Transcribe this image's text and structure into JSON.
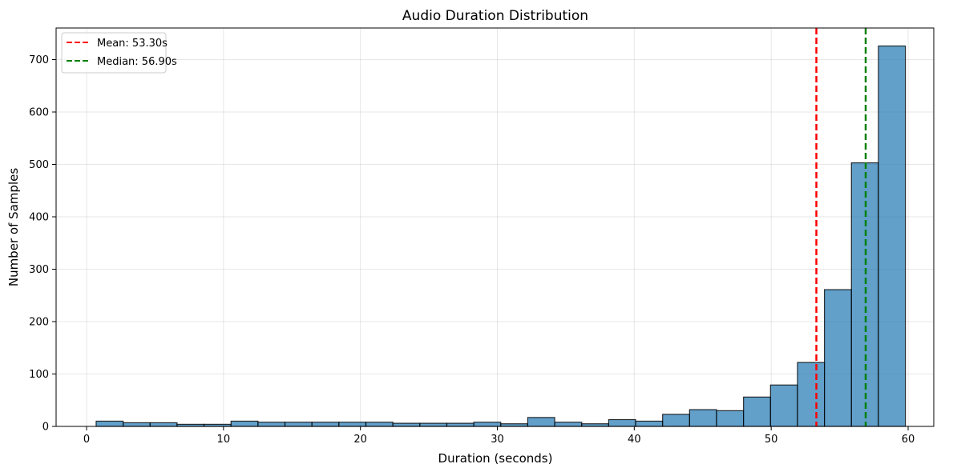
{
  "chart_data": {
    "type": "bar",
    "subtype": "histogram",
    "title": "Audio Duration Distribution",
    "xlabel": "Duration (seconds)",
    "ylabel": "Number of Samples",
    "xlim": [
      -2.3,
      62.3
    ],
    "ylim": [
      0,
      762
    ],
    "x_ticks": [
      0,
      10,
      20,
      30,
      40,
      50,
      60
    ],
    "y_ticks": [
      0,
      100,
      200,
      300,
      400,
      500,
      600,
      700
    ],
    "grid": true,
    "legend_position": "upper left",
    "bin_start": 0.7,
    "bin_width": 1.97,
    "bin_edges": [
      0.7,
      2.67,
      4.64,
      6.61,
      8.58,
      10.55,
      12.52,
      14.49,
      16.46,
      18.43,
      20.4,
      22.37,
      24.34,
      26.31,
      28.28,
      30.25,
      32.22,
      34.19,
      36.16,
      38.13,
      40.1,
      42.07,
      44.04,
      46.01,
      47.98,
      49.95,
      51.92,
      53.89,
      55.86,
      57.83,
      59.8
    ],
    "values": [
      10,
      7,
      7,
      4,
      4,
      10,
      8,
      8,
      8,
      8,
      8,
      6,
      6,
      6,
      8,
      5,
      17,
      8,
      5,
      13,
      10,
      23,
      32,
      30,
      56,
      79,
      122,
      261,
      503,
      726
    ],
    "bar_color": "#1f77b4",
    "bar_alpha": 0.7,
    "bar_edge_color": "#000000",
    "reference_lines": [
      {
        "name": "Mean",
        "value": 53.3,
        "label": "Mean: 53.30s",
        "color": "#ff0000",
        "style": "dashed"
      },
      {
        "name": "Median",
        "value": 56.9,
        "label": "Median: 56.90s",
        "color": "#008000",
        "style": "dashed"
      }
    ]
  },
  "legend": {
    "items": [
      {
        "label": "Mean: 53.30s",
        "color": "#ff0000"
      },
      {
        "label": "Median: 56.90s",
        "color": "#008000"
      }
    ]
  }
}
